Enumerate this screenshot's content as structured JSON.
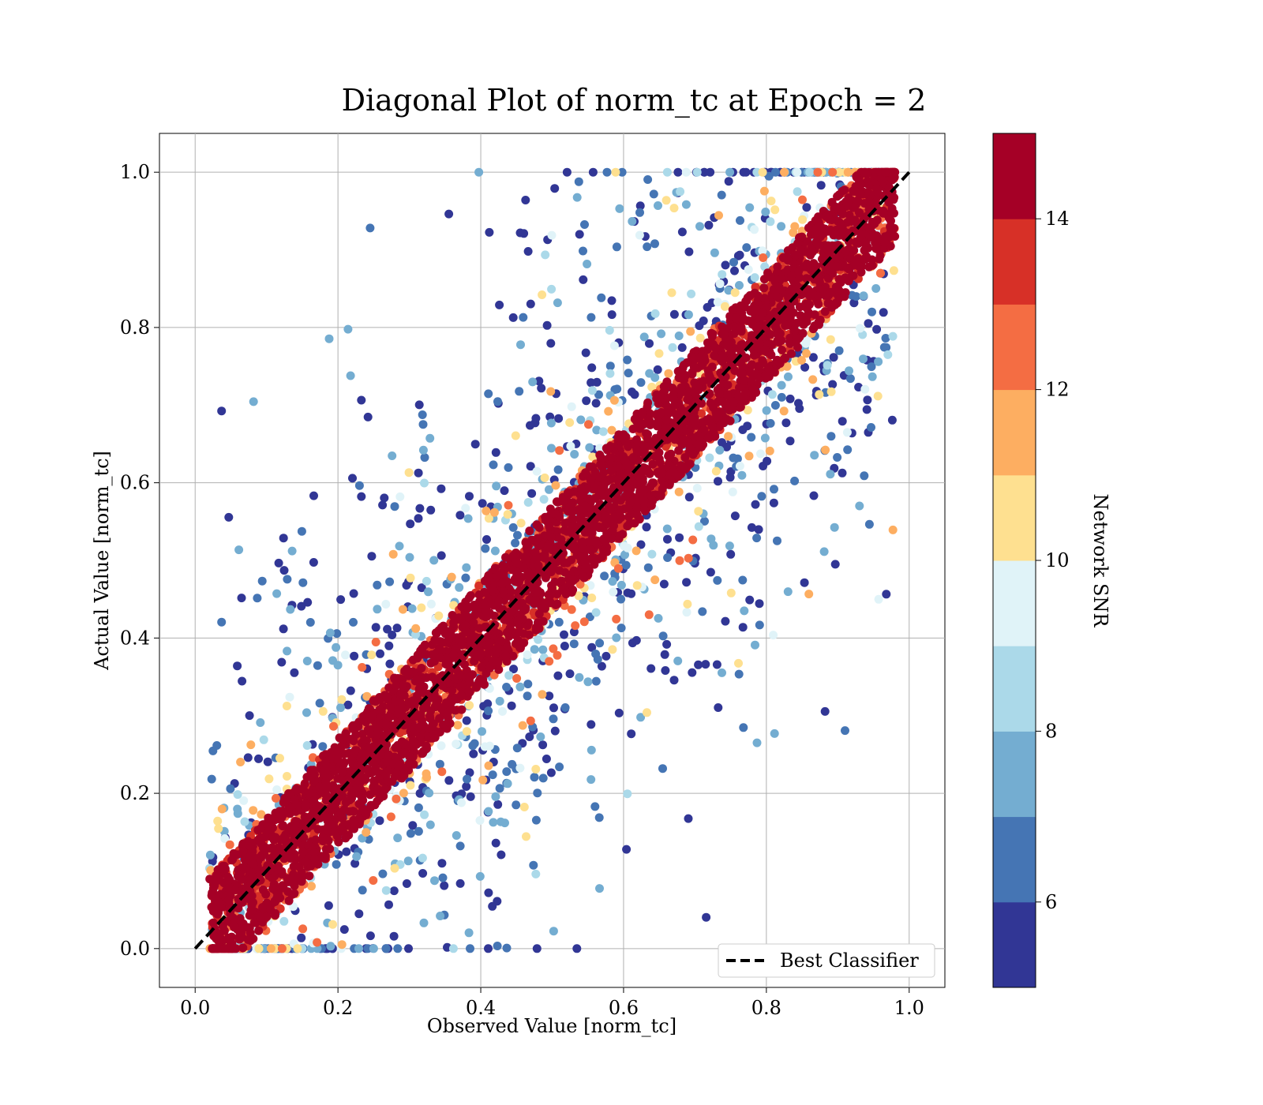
{
  "chart_data": {
    "type": "scatter",
    "title": "Diagonal Plot of norm_tc at Epoch = 2",
    "xlabel": "Observed Value [norm_tc]",
    "ylabel": "Actual Value [norm_tc]",
    "xlim": [
      -0.05,
      1.05
    ],
    "ylim": [
      -0.05,
      1.05
    ],
    "xticks": [
      0.0,
      0.2,
      0.4,
      0.6,
      0.8,
      1.0
    ],
    "yticks": [
      0.0,
      0.2,
      0.4,
      0.6,
      0.8,
      1.0
    ],
    "xtick_labels": [
      "0.0",
      "0.2",
      "0.4",
      "0.6",
      "0.8",
      "1.0"
    ],
    "ytick_labels": [
      "0.0",
      "0.2",
      "0.4",
      "0.6",
      "0.8",
      "1.0"
    ],
    "grid": true,
    "reference_line": {
      "label": "Best Classifier",
      "points": [
        [
          0.0,
          0.0
        ],
        [
          1.0,
          1.0
        ]
      ],
      "style": "dashed",
      "color": "#000000"
    },
    "legend": {
      "position": "lower-right",
      "entries": [
        "Best Classifier"
      ]
    },
    "colorbar": {
      "label": "Network SNR",
      "range": [
        5,
        15
      ],
      "ticks": [
        6,
        8,
        10,
        12,
        14
      ],
      "tick_labels": [
        "6",
        "8",
        "10",
        "12",
        "14"
      ],
      "colors": [
        "#313695",
        "#4575b4",
        "#74add1",
        "#abd9e9",
        "#e0f3f8",
        "#fee090",
        "#fdae61",
        "#f46d43",
        "#d73027",
        "#a50026"
      ]
    },
    "point_density": {
      "x_range": [
        0.02,
        0.98
      ],
      "y_range": [
        0.0,
        1.0
      ],
      "high_snr_band_halfwidth": 0.07,
      "note_on_points": "dense band of high-SNR points along y=x; low-SNR points scattered widely"
    },
    "series": [
      {
        "x": [
          0.05,
          0.09,
          0.12,
          0.15,
          0.18,
          0.22,
          0.26,
          0.3,
          0.35,
          0.4,
          0.45,
          0.5,
          0.55,
          0.6,
          0.65,
          0.7,
          0.75,
          0.8,
          0.85,
          0.9,
          0.95
        ],
        "y": [
          0.05,
          0.09,
          0.12,
          0.15,
          0.18,
          0.22,
          0.26,
          0.3,
          0.35,
          0.4,
          0.45,
          0.5,
          0.55,
          0.6,
          0.65,
          0.7,
          0.75,
          0.8,
          0.85,
          0.9,
          0.95
        ],
        "snr": [
          15,
          15,
          15,
          15,
          15,
          15,
          15,
          15,
          15,
          15,
          15,
          15,
          15,
          15,
          15,
          15,
          15,
          15,
          15,
          15,
          15
        ]
      }
    ]
  }
}
